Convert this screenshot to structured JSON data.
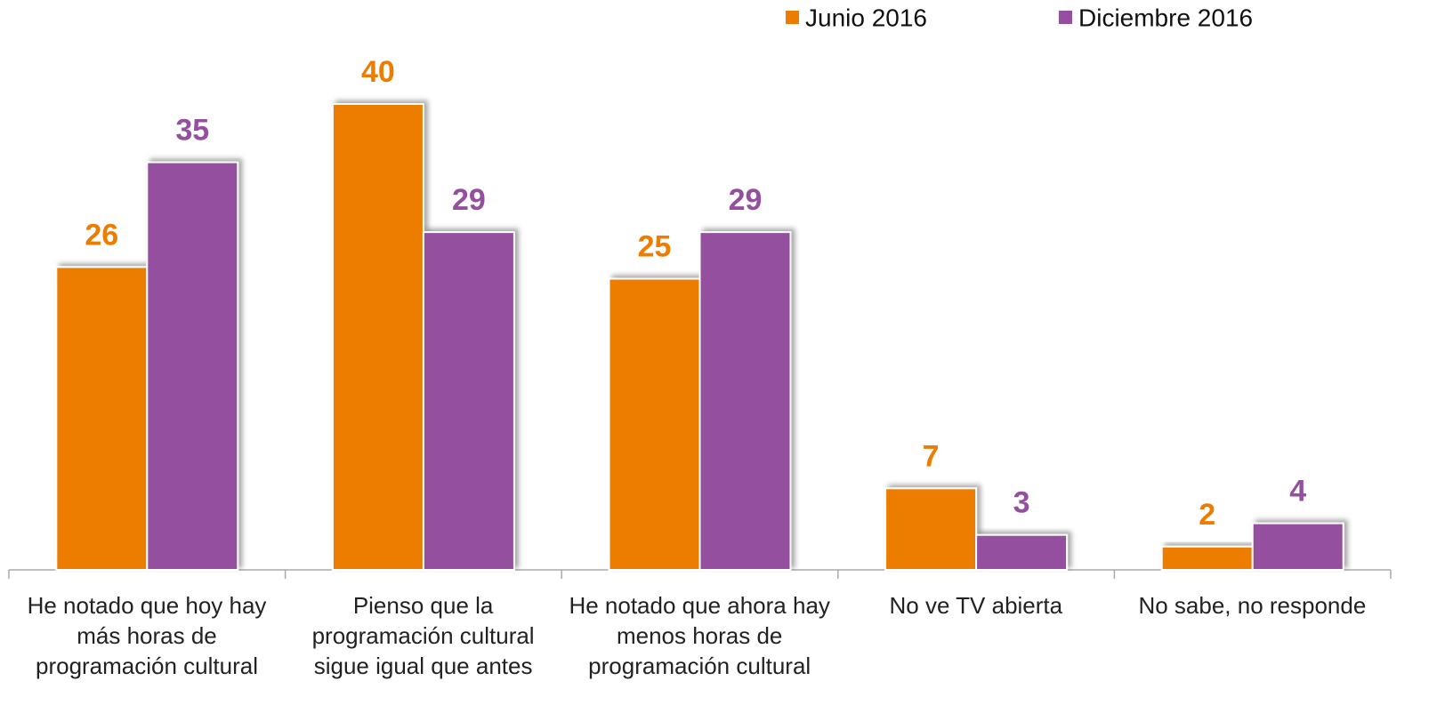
{
  "chart_data": {
    "type": "bar",
    "categories": [
      "He notado que hoy hay más horas de programación cultural",
      "Pienso que la programación cultural sigue igual que antes",
      "He notado que ahora hay menos horas de programación cultural",
      "No ve TV abierta",
      "No sabe, no responde"
    ],
    "series": [
      {
        "name": "Junio 2016",
        "color": "#ED7D00",
        "values": [
          26,
          40,
          25,
          7,
          2
        ]
      },
      {
        "name": "Diciembre 2016",
        "color": "#944F9E",
        "values": [
          35,
          29,
          29,
          3,
          4
        ]
      }
    ],
    "legend": "top-right"
  }
}
